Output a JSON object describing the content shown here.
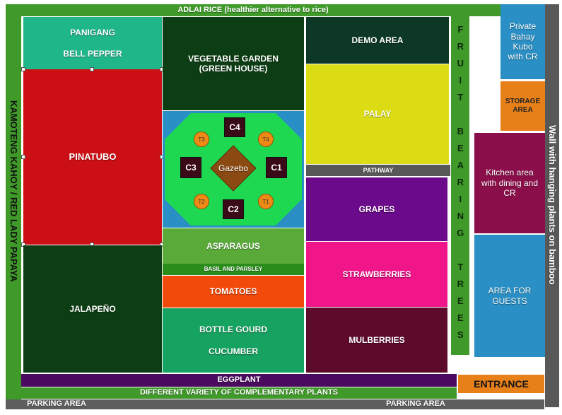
{
  "north_strip": "ADLAI RICE (healthier alternative to rice)",
  "west_strip": "KAMOTENG KAHOY / RED LADY PAPAYA",
  "plots": {
    "panigang": "PANIGANG",
    "bell_pepper": "BELL PEPPER",
    "vegetable_garden": "VEGETABLE GARDEN (GREEN HOUSE)",
    "demo_area": "DEMO AREA",
    "palay": "PALAY",
    "pathway": "PATHWAY",
    "pinatubo": "PINATUBO",
    "grapes": "GRAPES",
    "asparagus": "ASPARAGUS",
    "basil_parsley": "BASIL AND PARSLEY",
    "tomatoes": "TOMATOES",
    "strawberries": "STRAWBERRIES",
    "jalapeno": "JALAPEÑO",
    "bottle_gourd": "BOTTLE GOURD",
    "cucumber": "CUCUMBER",
    "mulberries": "MULBERRIES",
    "eggplant": "EGGPLANT",
    "complementary": "DIFFERENT VARIETY OF COMPLEMENTARY PLANTS"
  },
  "gazebo": {
    "label": "Gazebo",
    "cottages": {
      "c1": "C1",
      "c2": "C2",
      "c3": "C3",
      "c4": "C4"
    },
    "tables": {
      "t1": "T1",
      "t2": "T2",
      "t3": "T3",
      "t4": "T4"
    }
  },
  "fruit_trees": "FRUIT BEARING TREES",
  "buildings": {
    "bahay_kubo": "Private Bahay Kubo with CR",
    "storage": "STORAGE AREA",
    "kitchen": "Kitchen area with dining and CR",
    "guests": "AREA FOR GUESTS"
  },
  "east_wall": "Wall with hanging plants on bamboo",
  "entrance": "ENTRANCE",
  "parking_left": "PARKING AREA",
  "parking_right": "PARKING AREA",
  "colors": {
    "border_green": "#3f9a2a",
    "teal": "#1fb68a",
    "dark_green": "#0d3d14",
    "red": "#cc0f14",
    "yellow": "#dcdc14",
    "purple": "#6b0a8a",
    "pink": "#f0168a",
    "maroon": "#5e0a2a",
    "blue": "#2a8fc4",
    "orange": "#e8801a",
    "grey": "#585858"
  }
}
